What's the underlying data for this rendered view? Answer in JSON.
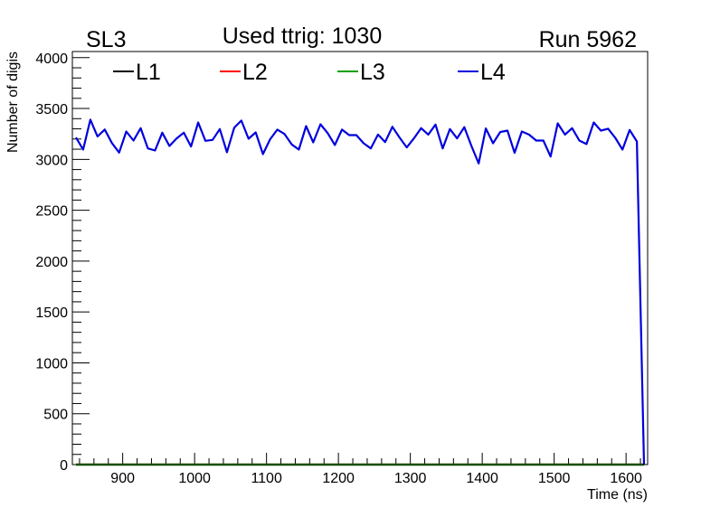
{
  "header": {
    "left": "SL3",
    "center": "Used ttrig: 1030",
    "right": "Run 5962"
  },
  "chart_data": {
    "type": "line",
    "title": "Used ttrig: 1030",
    "xlabel": "Time (ns)",
    "ylabel": "Number of digis",
    "xlim": [
      830,
      1630
    ],
    "ylim": [
      0,
      4060
    ],
    "xticks": [
      900,
      1000,
      1100,
      1200,
      1300,
      1400,
      1500,
      1600
    ],
    "yticks": [
      0,
      500,
      1000,
      1500,
      2000,
      2500,
      3000,
      3500,
      4000
    ],
    "grid": false,
    "legend_placement": "top",
    "x_start": 835,
    "x_step": 10,
    "series": [
      {
        "name": "L1",
        "color": "#000000",
        "values": "zeros"
      },
      {
        "name": "L2",
        "color": "#ff0000",
        "values": "zeros"
      },
      {
        "name": "L3",
        "color": "#00a000",
        "values": "zeros"
      },
      {
        "name": "L4",
        "color": "#0000dd",
        "values": [
          3215,
          3096,
          3390,
          3225,
          3293,
          3161,
          3067,
          3274,
          3185,
          3307,
          3108,
          3087,
          3262,
          3132,
          3206,
          3262,
          3126,
          3363,
          3182,
          3191,
          3298,
          3070,
          3310,
          3381,
          3203,
          3265,
          3052,
          3197,
          3292,
          3250,
          3147,
          3096,
          3327,
          3167,
          3345,
          3259,
          3141,
          3292,
          3238,
          3238,
          3158,
          3108,
          3244,
          3170,
          3320,
          3215,
          3117,
          3206,
          3307,
          3244,
          3342,
          3108,
          3298,
          3206,
          3316,
          3132,
          2960,
          3304,
          3158,
          3268,
          3283,
          3064,
          3274,
          3244,
          3185,
          3185,
          3028,
          3354,
          3244,
          3307,
          3185,
          3150,
          3363,
          3283,
          3301,
          3212,
          3096,
          3289,
          3176,
          0
        ]
      }
    ]
  }
}
